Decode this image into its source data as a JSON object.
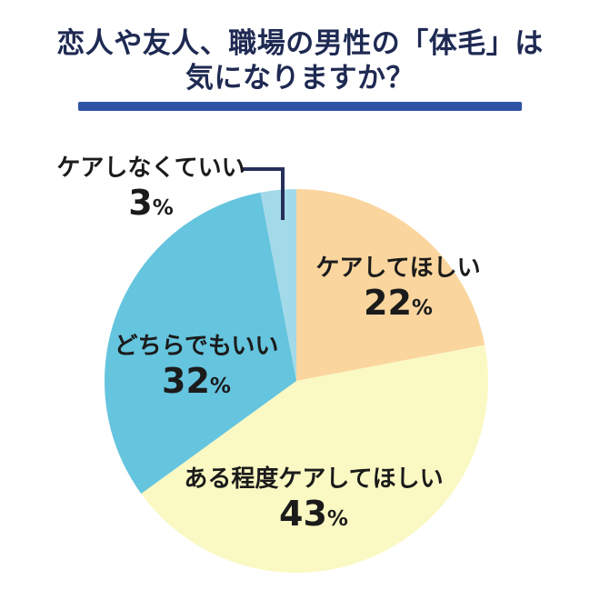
{
  "header": {
    "title_line1": "恋人や友人、職場の男性の「体毛」は",
    "title_line2": "気になりますか？",
    "title_color": "#1F2A53",
    "underline_color": "#2E53A4"
  },
  "chart_data": {
    "type": "pie",
    "title": "恋人や友人、職場の男性の「体毛」は気になりますか？",
    "start_angle_deg": 0,
    "direction": "clockwise",
    "total": 100,
    "slices": [
      {
        "label": "ケアしてほしい",
        "value": 22,
        "unit": "%",
        "color": "#FAD59E"
      },
      {
        "label": "ある程度ケアしてほしい",
        "value": 43,
        "unit": "%",
        "color": "#FBF9C3"
      },
      {
        "label": "どちらでもいい",
        "value": 32,
        "unit": "%",
        "color": "#65C4DE"
      },
      {
        "label": "ケアしなくていい",
        "value": 3,
        "unit": "%",
        "color": "#A3DAE9"
      }
    ],
    "label_color": "#1B1B1B",
    "leader_line_color": "#27305A",
    "legend_position": "none",
    "labels_on_chart": true
  }
}
